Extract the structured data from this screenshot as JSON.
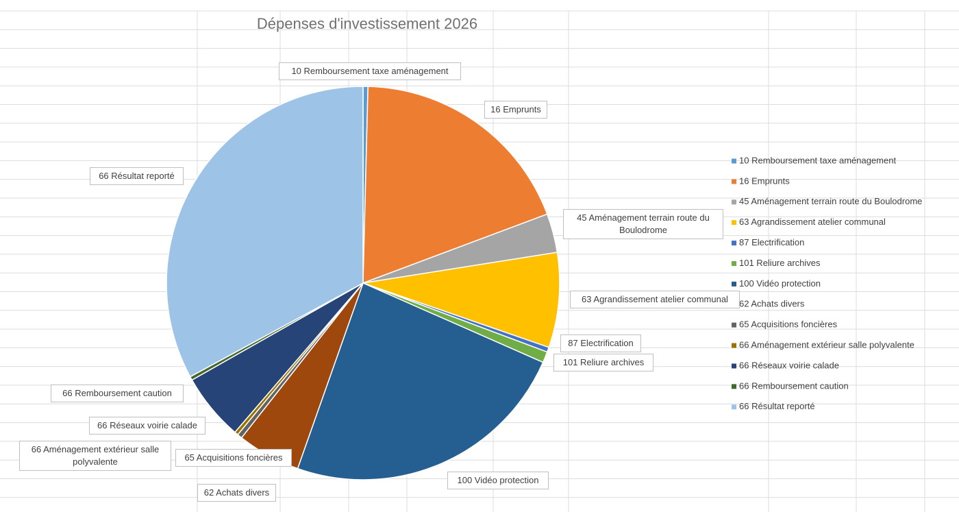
{
  "chart_data": {
    "type": "pie",
    "title": "Dépenses d'investissement 2026",
    "categories": [
      "10 Remboursement taxe aménagement",
      "16 Emprunts",
      "45 Aménagement terrain route du Boulodrome",
      "63 Agrandissement atelier communal",
      "87 Electrification",
      "101 Reliure archives",
      "100 Vidéo protection",
      "62 Achats divers",
      "65 Acquisitions foncières",
      "66 Aménagement extérieur salle polyvalente",
      "66 Réseaux voirie calade",
      "66 Remboursement caution",
      "66 Résultat reporté"
    ],
    "values": [
      0.4,
      18.9,
      3.2,
      7.8,
      0.4,
      0.9,
      23.8,
      5.2,
      0.4,
      0.3,
      5.5,
      0.3,
      32.9
    ],
    "colors": [
      "#5b9bd5",
      "#ed7d31",
      "#a5a5a5",
      "#ffc000",
      "#4472c4",
      "#70ad47",
      "#255e91",
      "#9e480e",
      "#636363",
      "#997300",
      "#264478",
      "#43682b",
      "#9dc3e6"
    ],
    "legend": "right"
  }
}
